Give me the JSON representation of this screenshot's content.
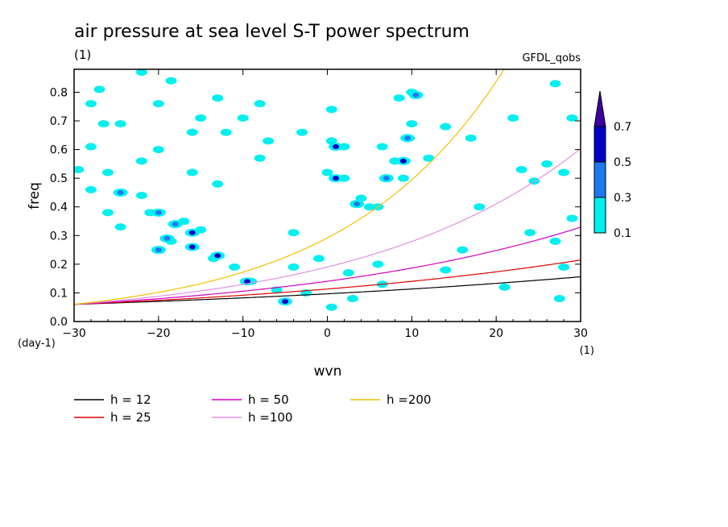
{
  "header": {
    "title": "air pressure at sea level S-T power spectrum",
    "units": "(1)",
    "dataset": "GFDL_qobs"
  },
  "chart_data": {
    "type": "contour",
    "title": "air pressure at sea level S-T power spectrum",
    "subtitle": "(1)",
    "source_label": "GFDL_qobs",
    "xlabel": "wvn",
    "x_units": "(1)",
    "ylabel": "freq",
    "y_units": "(day-1)",
    "xlim": [
      -30,
      30
    ],
    "ylim": [
      0,
      0.88
    ],
    "x_ticks": [
      -30,
      -20,
      -10,
      0,
      10,
      20,
      30
    ],
    "y_ticks": [
      0.0,
      0.1,
      0.2,
      0.3,
      0.4,
      0.5,
      0.6,
      0.7,
      0.8
    ],
    "x_tick_labels": [
      "−30",
      "−20",
      "−10",
      "0",
      "10",
      "20",
      "30"
    ],
    "y_tick_labels": [
      "0.0",
      "0.1",
      "0.2",
      "0.3",
      "0.4",
      "0.5",
      "0.6",
      "0.7",
      "0.8"
    ],
    "colorbar": {
      "levels": [
        0.1,
        0.3,
        0.5,
        0.7
      ],
      "labels": [
        "0.1",
        "0.3",
        "0.5",
        "0.7"
      ],
      "colors": [
        "#00f0f0",
        "#1e78f0",
        "#0000c8",
        "#3c00a0"
      ]
    },
    "dispersion_curves": [
      {
        "name": "h = 12",
        "h": 12,
        "color": "#000000"
      },
      {
        "name": "h = 25",
        "h": 25,
        "color": "#e00000"
      },
      {
        "name": "h = 50",
        "h": 50,
        "color": "#d000c0"
      },
      {
        "name": "h =100",
        "h": 100,
        "color": "#e090e0"
      },
      {
        "name": "h =200",
        "h": 200,
        "color": "#f0c000"
      }
    ],
    "cyan_features": [
      {
        "x": -22,
        "y": 0.87
      },
      {
        "x": -27,
        "y": 0.81
      },
      {
        "x": -18.5,
        "y": 0.84
      },
      {
        "x": -28,
        "y": 0.76
      },
      {
        "x": -13,
        "y": 0.78
      },
      {
        "x": -26.5,
        "y": 0.69
      },
      {
        "x": -24.5,
        "y": 0.69
      },
      {
        "x": -20,
        "y": 0.76
      },
      {
        "x": -8,
        "y": 0.76
      },
      {
        "x": -15,
        "y": 0.71
      },
      {
        "x": -10,
        "y": 0.71
      },
      {
        "x": -16,
        "y": 0.66
      },
      {
        "x": -12,
        "y": 0.66
      },
      {
        "x": -28,
        "y": 0.61
      },
      {
        "x": -20,
        "y": 0.6
      },
      {
        "x": -22,
        "y": 0.56
      },
      {
        "x": -16,
        "y": 0.52
      },
      {
        "x": -26,
        "y": 0.52
      },
      {
        "x": -29.5,
        "y": 0.53
      },
      {
        "x": -13,
        "y": 0.48
      },
      {
        "x": -22,
        "y": 0.44
      },
      {
        "x": -28,
        "y": 0.46
      },
      {
        "x": -26,
        "y": 0.38
      },
      {
        "x": -21,
        "y": 0.38
      },
      {
        "x": -17,
        "y": 0.35
      },
      {
        "x": -15,
        "y": 0.32
      },
      {
        "x": -18.5,
        "y": 0.28
      },
      {
        "x": -24.5,
        "y": 0.33
      },
      {
        "x": -16,
        "y": 0.26
      },
      {
        "x": -13.5,
        "y": 0.22
      },
      {
        "x": -11,
        "y": 0.19
      },
      {
        "x": -9,
        "y": 0.14
      },
      {
        "x": -6,
        "y": 0.11
      },
      {
        "x": -5,
        "y": 0.07
      },
      {
        "x": -4,
        "y": 0.31
      },
      {
        "x": -4,
        "y": 0.19
      },
      {
        "x": -2.5,
        "y": 0.1
      },
      {
        "x": 0.5,
        "y": 0.05
      },
      {
        "x": -1,
        "y": 0.22
      },
      {
        "x": 0.5,
        "y": 0.74
      },
      {
        "x": 0.5,
        "y": 0.63
      },
      {
        "x": 2,
        "y": 0.61
      },
      {
        "x": 0,
        "y": 0.52
      },
      {
        "x": 2,
        "y": 0.5
      },
      {
        "x": 4,
        "y": 0.43
      },
      {
        "x": 5,
        "y": 0.4
      },
      {
        "x": 6,
        "y": 0.4
      },
      {
        "x": 6.5,
        "y": 0.61
      },
      {
        "x": 8,
        "y": 0.56
      },
      {
        "x": 9,
        "y": 0.5
      },
      {
        "x": 8.5,
        "y": 0.78
      },
      {
        "x": 10,
        "y": 0.8
      },
      {
        "x": 10,
        "y": 0.69
      },
      {
        "x": 12,
        "y": 0.57
      },
      {
        "x": 14,
        "y": 0.68
      },
      {
        "x": 6,
        "y": 0.2
      },
      {
        "x": 6.5,
        "y": 0.13
      },
      {
        "x": 3,
        "y": 0.08
      },
      {
        "x": 14,
        "y": 0.18
      },
      {
        "x": 17,
        "y": 0.64
      },
      {
        "x": 22,
        "y": 0.71
      },
      {
        "x": 27,
        "y": 0.83
      },
      {
        "x": 29,
        "y": 0.71
      },
      {
        "x": 23,
        "y": 0.53
      },
      {
        "x": 26,
        "y": 0.55
      },
      {
        "x": 28,
        "y": 0.52
      },
      {
        "x": 24,
        "y": 0.31
      },
      {
        "x": 27,
        "y": 0.28
      },
      {
        "x": 29,
        "y": 0.36
      },
      {
        "x": 27.5,
        "y": 0.08
      },
      {
        "x": 28,
        "y": 0.19
      },
      {
        "x": 21,
        "y": 0.12
      },
      {
        "x": 24.5,
        "y": 0.49
      },
      {
        "x": 16,
        "y": 0.25
      },
      {
        "x": 18,
        "y": 0.4
      },
      {
        "x": 2.5,
        "y": 0.17
      },
      {
        "x": -8,
        "y": 0.57
      },
      {
        "x": -3,
        "y": 0.66
      },
      {
        "x": -7,
        "y": 0.63
      }
    ],
    "peaks": [
      {
        "x": -20,
        "y": 0.38,
        "level": 0.3
      },
      {
        "x": -18,
        "y": 0.34,
        "level": 0.3
      },
      {
        "x": -16,
        "y": 0.31,
        "level": 0.5
      },
      {
        "x": -16,
        "y": 0.26,
        "level": 0.5
      },
      {
        "x": -13,
        "y": 0.23,
        "level": 0.5
      },
      {
        "x": -19,
        "y": 0.29,
        "level": 0.3
      },
      {
        "x": -20,
        "y": 0.25,
        "level": 0.3
      },
      {
        "x": -9.5,
        "y": 0.14,
        "level": 0.5
      },
      {
        "x": -5,
        "y": 0.07,
        "level": 0.5
      },
      {
        "x": 1,
        "y": 0.5,
        "level": 0.5
      },
      {
        "x": 1,
        "y": 0.61,
        "level": 0.5
      },
      {
        "x": 9,
        "y": 0.56,
        "level": 0.5
      },
      {
        "x": 10.5,
        "y": 0.79,
        "level": 0.3
      },
      {
        "x": 7,
        "y": 0.5,
        "level": 0.3
      },
      {
        "x": 3.5,
        "y": 0.41,
        "level": 0.3
      },
      {
        "x": 9.5,
        "y": 0.64,
        "level": 0.3
      },
      {
        "x": -24.5,
        "y": 0.45,
        "level": 0.3
      }
    ]
  }
}
